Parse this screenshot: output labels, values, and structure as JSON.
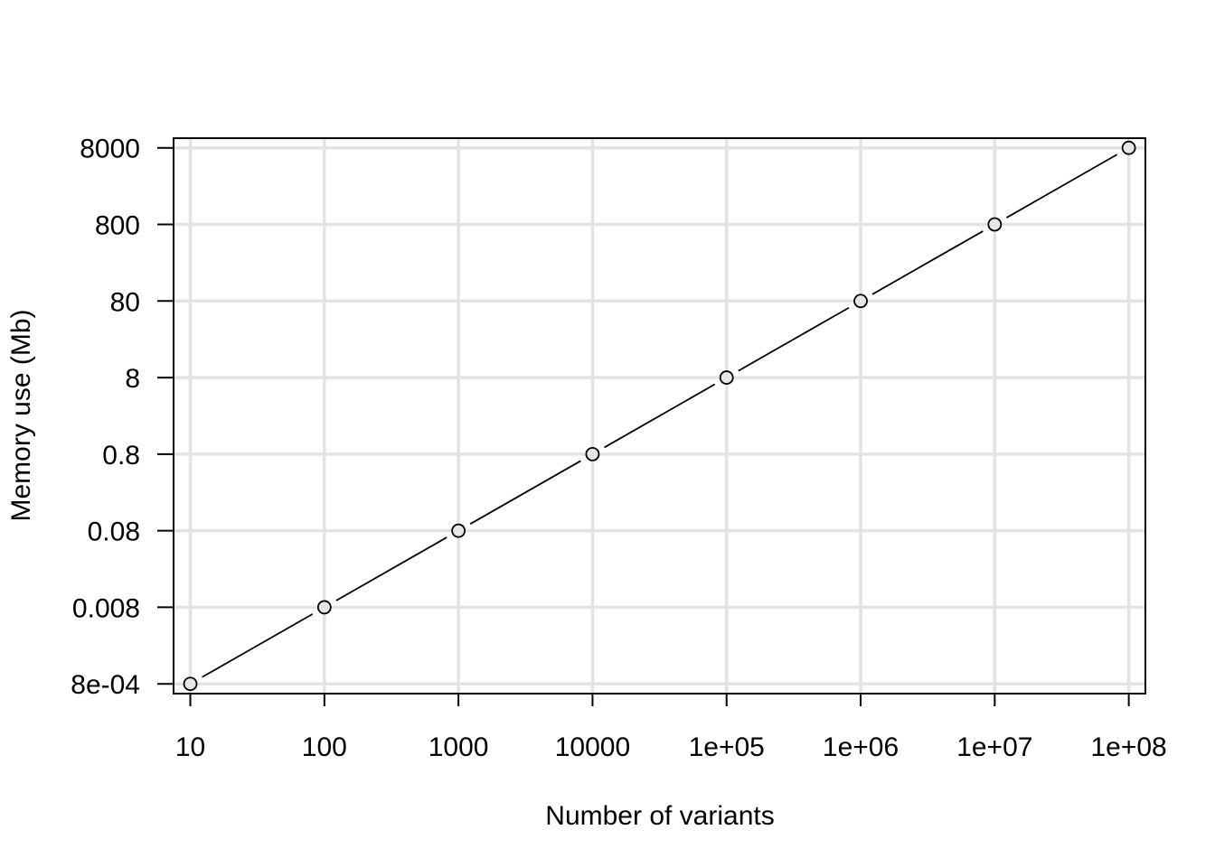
{
  "chart_data": {
    "type": "scatter",
    "xlabel": "Number of variants",
    "ylabel": "Memory use (Mb)",
    "x_scale": "log",
    "y_scale": "log",
    "x": [
      10,
      100,
      1000,
      10000,
      100000,
      1000000,
      10000000,
      100000000
    ],
    "y": [
      0.0008,
      0.008,
      0.08,
      0.8,
      8,
      80,
      800,
      8000
    ],
    "x_ticks": [
      10,
      100,
      1000,
      10000,
      100000,
      1000000,
      10000000,
      100000000
    ],
    "x_tick_labels": [
      "10",
      "100",
      "1000",
      "10000",
      "1e+05",
      "1e+06",
      "1e+07",
      "1e+08"
    ],
    "y_ticks": [
      0.0008,
      0.008,
      0.08,
      0.8,
      8,
      80,
      800,
      8000
    ],
    "y_tick_labels": [
      "8e-04",
      "0.008",
      "0.08",
      "0.8",
      "8",
      "80",
      "800",
      "8000"
    ],
    "xlim": [
      7.5,
      133000000
    ],
    "ylim": [
      0.000597,
      10700
    ],
    "grid": true,
    "series_style": "line with open circle markers",
    "colors": {
      "grid": "#e3e3e3",
      "point_fill": "#e6e6e6",
      "line": "#000000"
    }
  }
}
